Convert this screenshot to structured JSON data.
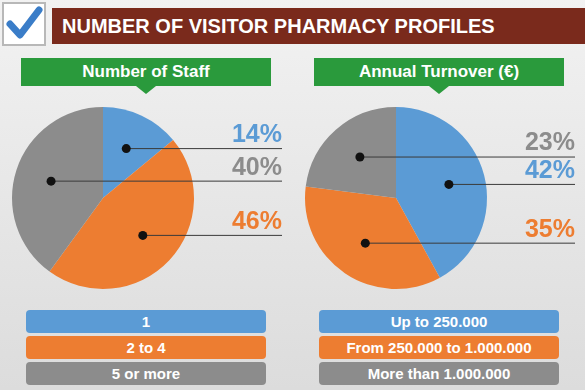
{
  "title": "NUMBER OF VISITOR PHARMACY PROFILES",
  "chart_data": [
    {
      "type": "pie",
      "title": "Number of Staff",
      "categories": [
        "1",
        "2 to 4",
        "5 or more"
      ],
      "values": [
        14,
        46,
        40
      ],
      "value_labels": [
        "14%",
        "46%",
        "40%"
      ],
      "colors": [
        "#5b9bd5",
        "#ed7d31",
        "#8c8c8c"
      ],
      "data_labels": true,
      "legend": "bottom"
    },
    {
      "type": "pie",
      "title": "Annual Turnover (€)",
      "categories": [
        "Up to 250.000",
        "From 250.000 to 1.000.000",
        "More than 1.000.000"
      ],
      "values": [
        42,
        35,
        23
      ],
      "value_labels": [
        "42%",
        "35%",
        "23%"
      ],
      "colors": [
        "#5b9bd5",
        "#ed7d31",
        "#8c8c8c"
      ],
      "data_labels": true,
      "legend": "bottom"
    }
  ]
}
